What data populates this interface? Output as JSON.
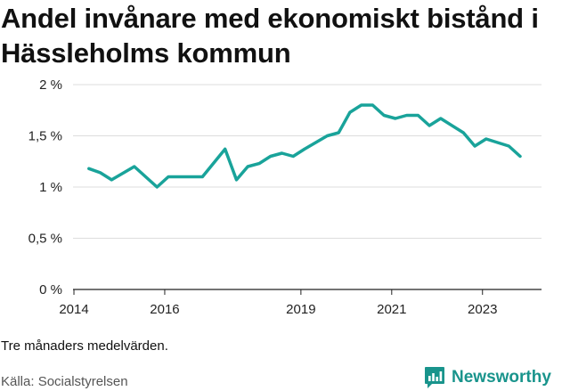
{
  "title": "Andel invånare med ekonomiskt bistånd i Hässleholms kommun",
  "note": "Tre månaders medelvärden.",
  "source": "Källa: Socialstyrelsen",
  "brand": {
    "name": "Newsworthy",
    "icon": "newsworthy-logo-icon"
  },
  "colors": {
    "line": "#19a39a",
    "brand": "#19948c",
    "grid": "#dddddd",
    "axis": "#222222"
  },
  "chart_data": {
    "type": "line",
    "title": "Andel invånare med ekonomiskt bistånd i Hässleholms kommun",
    "xlabel": "",
    "ylabel": "",
    "grid": true,
    "legend": "none",
    "xlim": [
      2013.98,
      2024.3
    ],
    "ylim": [
      0,
      2
    ],
    "y_ticks": [
      {
        "value": 0,
        "label": "0 %"
      },
      {
        "value": 0.5,
        "label": "0,5 %"
      },
      {
        "value": 1,
        "label": "1 %"
      },
      {
        "value": 1.5,
        "label": "1,5 %"
      },
      {
        "value": 2,
        "label": "2 %"
      }
    ],
    "x_ticks": [
      {
        "value": 2014,
        "label": "2014"
      },
      {
        "value": 2016,
        "label": "2016"
      },
      {
        "value": 2019,
        "label": "2019"
      },
      {
        "value": 2021,
        "label": "2021"
      },
      {
        "value": 2023,
        "label": "2023"
      }
    ],
    "series": [
      {
        "values": [
          {
            "x": 2014.33,
            "y": 1.18
          },
          {
            "x": 2014.58,
            "y": 1.14
          },
          {
            "x": 2014.83,
            "y": 1.07
          },
          {
            "x": 2015.33,
            "y": 1.2
          },
          {
            "x": 2015.83,
            "y": 1.0
          },
          {
            "x": 2016.08,
            "y": 1.1
          },
          {
            "x": 2016.83,
            "y": 1.1
          },
          {
            "x": 2017.33,
            "y": 1.37
          },
          {
            "x": 2017.58,
            "y": 1.07
          },
          {
            "x": 2017.83,
            "y": 1.2
          },
          {
            "x": 2018.08,
            "y": 1.23
          },
          {
            "x": 2018.33,
            "y": 1.3
          },
          {
            "x": 2018.58,
            "y": 1.33
          },
          {
            "x": 2018.83,
            "y": 1.3
          },
          {
            "x": 2019.08,
            "y": 1.37
          },
          {
            "x": 2019.58,
            "y": 1.5
          },
          {
            "x": 2019.83,
            "y": 1.53
          },
          {
            "x": 2020.08,
            "y": 1.73
          },
          {
            "x": 2020.33,
            "y": 1.8
          },
          {
            "x": 2020.58,
            "y": 1.8
          },
          {
            "x": 2020.83,
            "y": 1.7
          },
          {
            "x": 2021.08,
            "y": 1.67
          },
          {
            "x": 2021.33,
            "y": 1.7
          },
          {
            "x": 2021.58,
            "y": 1.7
          },
          {
            "x": 2021.83,
            "y": 1.6
          },
          {
            "x": 2022.08,
            "y": 1.67
          },
          {
            "x": 2022.58,
            "y": 1.53
          },
          {
            "x": 2022.83,
            "y": 1.4
          },
          {
            "x": 2023.08,
            "y": 1.47
          },
          {
            "x": 2023.58,
            "y": 1.4
          },
          {
            "x": 2023.83,
            "y": 1.3
          }
        ]
      }
    ]
  }
}
